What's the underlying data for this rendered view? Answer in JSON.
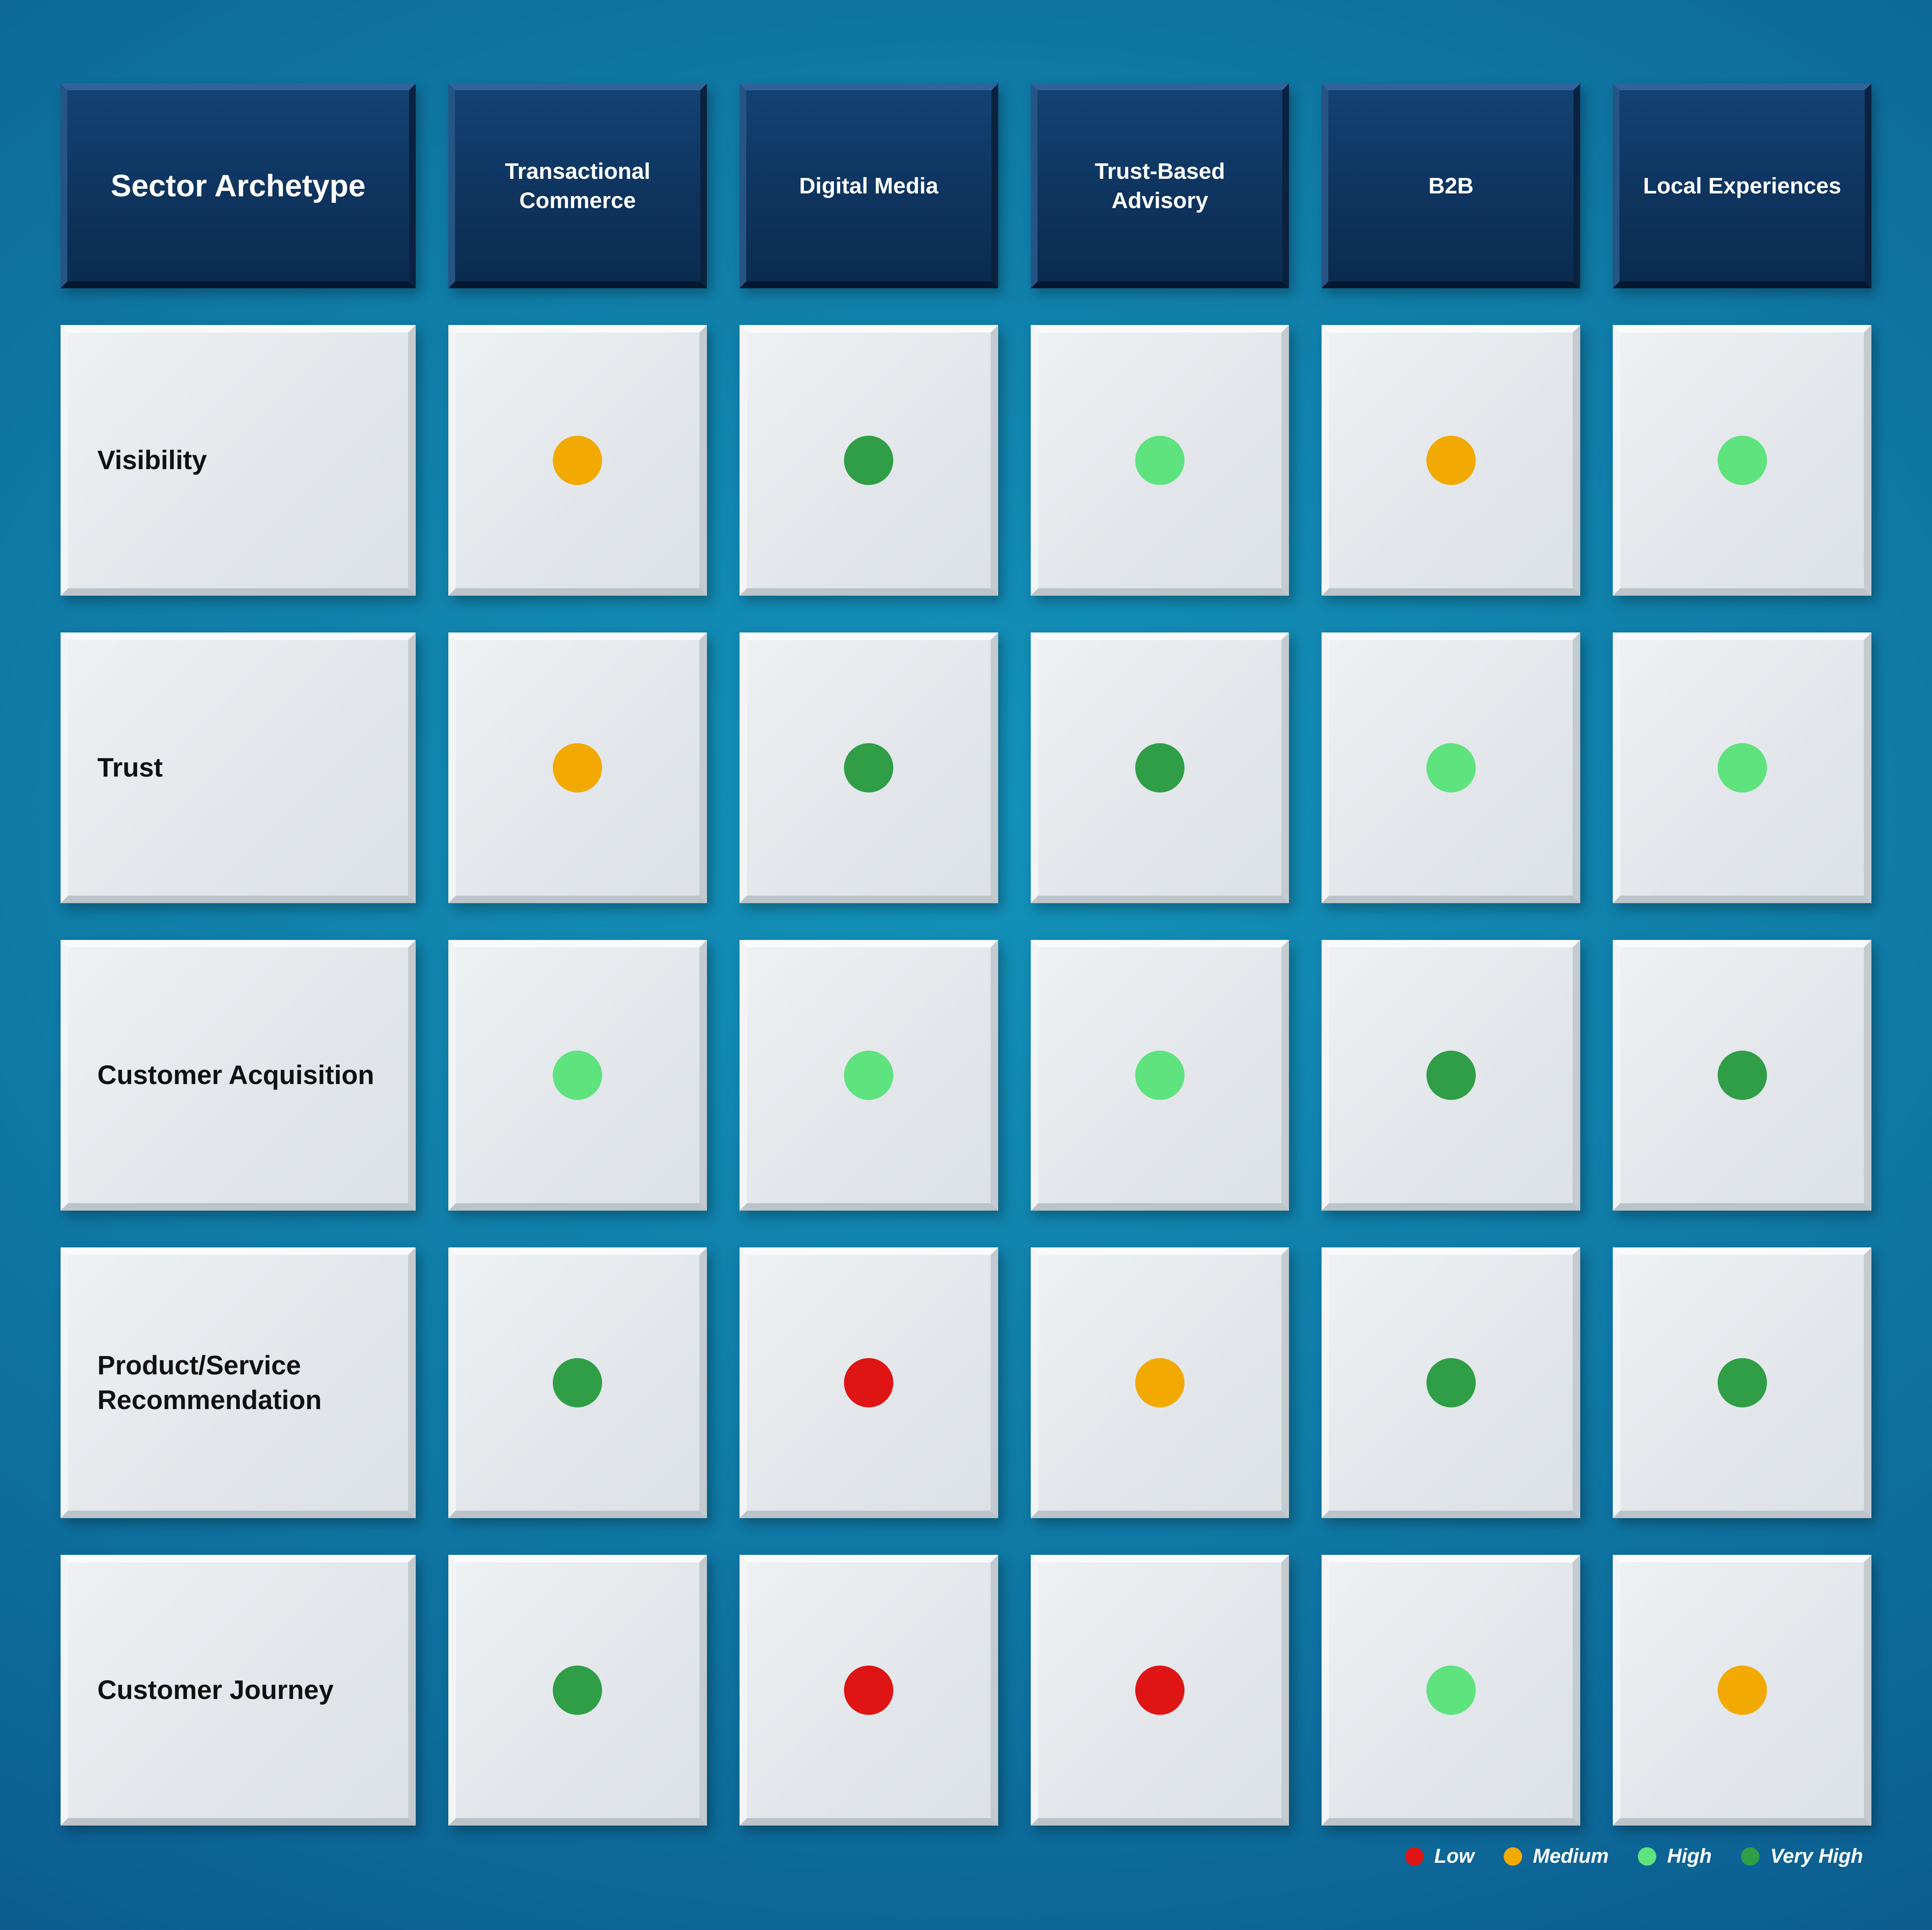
{
  "matrix": {
    "corner_label": "Sector Archetype",
    "columns": [
      "Transactional Commerce",
      "Digital Media",
      "Trust-Based Advisory",
      "B2B",
      "Local Experiences"
    ],
    "rows": [
      {
        "label": "Visibility",
        "ratings": [
          "medium",
          "very_high",
          "high",
          "medium",
          "high"
        ]
      },
      {
        "label": "Trust",
        "ratings": [
          "medium",
          "very_high",
          "very_high",
          "high",
          "high"
        ]
      },
      {
        "label": "Customer Acquisition",
        "ratings": [
          "high",
          "high",
          "high",
          "very_high",
          "very_high"
        ]
      },
      {
        "label": "Product/Service Recommendation",
        "ratings": [
          "very_high",
          "low",
          "medium",
          "very_high",
          "very_high"
        ]
      },
      {
        "label": "Customer Journey",
        "ratings": [
          "very_high",
          "low",
          "low",
          "high",
          "medium"
        ]
      }
    ]
  },
  "rating_colors": {
    "low": "#df1414",
    "medium": "#f2aa02",
    "high": "#5ee37e",
    "very_high": "#2f9e47"
  },
  "legend": {
    "items": [
      {
        "key": "low",
        "label": "Low"
      },
      {
        "key": "medium",
        "label": "Medium"
      },
      {
        "key": "high",
        "label": "High"
      },
      {
        "key": "very_high",
        "label": "Very High"
      }
    ]
  },
  "chart_data": {
    "type": "heatmap",
    "title": "Sector Archetype",
    "x_categories": [
      "Transactional Commerce",
      "Digital Media",
      "Trust-Based Advisory",
      "B2B",
      "Local Experiences"
    ],
    "y_categories": [
      "Visibility",
      "Trust",
      "Customer Acquisition",
      "Product/Service Recommendation",
      "Customer Journey"
    ],
    "values": [
      [
        "Medium",
        "Very High",
        "High",
        "Medium",
        "High"
      ],
      [
        "Medium",
        "Very High",
        "Very High",
        "High",
        "High"
      ],
      [
        "High",
        "High",
        "High",
        "Very High",
        "Very High"
      ],
      [
        "Very High",
        "Low",
        "Medium",
        "Very High",
        "Very High"
      ],
      [
        "Very High",
        "Low",
        "Low",
        "High",
        "Medium"
      ]
    ],
    "value_scale": [
      "Low",
      "Medium",
      "High",
      "Very High"
    ],
    "legend_position": "bottom-right",
    "legend_colors": {
      "Low": "#df1414",
      "Medium": "#f2aa02",
      "High": "#5ee37e",
      "Very High": "#2f9e47"
    }
  }
}
